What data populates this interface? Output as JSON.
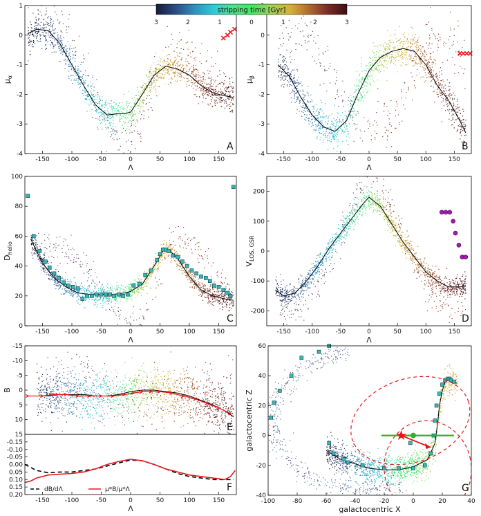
{
  "colorbar": {
    "label": "stripping time [Gyr]",
    "ticks": [
      "3",
      "2",
      "1",
      "0",
      "1",
      "2",
      "3"
    ],
    "colors": [
      "#151c3a",
      "#2c4a82",
      "#2f8fbf",
      "#2fc9d8",
      "#55e08a",
      "#40e860",
      "#9ed05a",
      "#d6b23a",
      "#b06a30",
      "#7a2a2a",
      "#3c0f12"
    ]
  },
  "panels": {
    "A": {
      "tag": "A",
      "xlabel": "Λ",
      "ylabel": "μ",
      "ylabel_sub": "α",
      "xlim": [
        -180,
        180
      ],
      "ylim": [
        -4,
        1
      ],
      "xticks": [
        "-150",
        "-100",
        "-50",
        "0",
        "50",
        "100",
        "150"
      ],
      "yticks": [
        "1",
        "0",
        "-1",
        "-2",
        "-3",
        "-4"
      ]
    },
    "B": {
      "tag": "B",
      "xlabel": "Λ",
      "ylabel": "μ",
      "ylabel_sub": "β",
      "xlim": [
        -180,
        180
      ],
      "ylim": [
        -4,
        1
      ],
      "xticks": [
        "-150",
        "-100",
        "-50",
        "0",
        "50",
        "100",
        "150"
      ],
      "yticks": [
        "1",
        "0",
        "-1",
        "-2",
        "-3",
        "-4"
      ]
    },
    "C": {
      "tag": "C",
      "xlabel": "Λ",
      "ylabel": "D",
      "ylabel_sub": "helio",
      "xlim": [
        -180,
        180
      ],
      "ylim": [
        0,
        100
      ],
      "xticks": [
        "-150",
        "-100",
        "-50",
        "0",
        "50",
        "100",
        "150"
      ],
      "yticks": [
        "100",
        "80",
        "60",
        "40",
        "20",
        "0"
      ]
    },
    "D": {
      "tag": "D",
      "xlabel": "Λ",
      "ylabel": "V",
      "ylabel_sub": "LOS, GSR",
      "xlim": [
        -180,
        180
      ],
      "ylim": [
        -250,
        250
      ],
      "xticks": [
        "-150",
        "-100",
        "-50",
        "0",
        "50",
        "100",
        "150"
      ],
      "yticks": [
        "200",
        "100",
        "0",
        "-100",
        "-200"
      ]
    },
    "E": {
      "tag": "E",
      "ylabel": "B",
      "xlim": [
        -180,
        180
      ],
      "ylim": [
        -15,
        15
      ],
      "yticks": [
        "-15",
        "-10",
        "-5",
        "0",
        "5",
        "10",
        "15"
      ]
    },
    "F": {
      "tag": "F",
      "xlabel": "Λ",
      "xlim": [
        -180,
        180
      ],
      "ylim": [
        -0.2,
        0.2
      ],
      "xticks": [
        "-150",
        "-100",
        "-50",
        "0",
        "50",
        "100",
        "150"
      ],
      "yticks": [
        "-0.15",
        "-0.10",
        "-0.05",
        "0.00",
        "0.05",
        "0.10",
        "0.15",
        "0.20"
      ],
      "legend": [
        {
          "name": "dB/dΛ",
          "style": "dashed",
          "color": "#000000"
        },
        {
          "name": "μ*B/μ*Λ",
          "style": "solid",
          "color": "#e8161b"
        }
      ]
    },
    "G": {
      "tag": "G",
      "xlabel": "galactocentric X",
      "ylabel": "galactocentric Z",
      "xlim": [
        -100,
        40
      ],
      "ylim": [
        -40,
        60
      ],
      "xticks": [
        "-100",
        "-80",
        "-60",
        "-40",
        "-20",
        "0",
        "20",
        "40"
      ],
      "yticks": [
        "60",
        "40",
        "20",
        "0",
        "-20",
        "-40"
      ]
    }
  },
  "chart_data": [
    {
      "type": "line",
      "panel": "A",
      "ylabel": "μα",
      "xlabel": "Λ",
      "series": [
        {
          "role": "model-track",
          "color": "#000000",
          "x": [
            -175,
            -160,
            -140,
            -120,
            -100,
            -80,
            -60,
            -40,
            -20,
            -10,
            0,
            20,
            40,
            60,
            80,
            100,
            120,
            140,
            160,
            175
          ],
          "y": [
            0.05,
            0.2,
            0.15,
            -0.3,
            -1.0,
            -1.7,
            -2.35,
            -2.7,
            -2.65,
            -2.65,
            -2.6,
            -2.0,
            -1.35,
            -1.05,
            -1.15,
            -1.35,
            -1.7,
            -1.95,
            -2.05,
            -2.1
          ]
        },
        {
          "role": "observed",
          "marker": "x",
          "color": "#e8161b",
          "x": [
            158,
            165,
            170,
            177
          ],
          "y": [
            -0.1,
            0.0,
            0.1,
            0.2
          ]
        }
      ]
    },
    {
      "type": "line",
      "panel": "B",
      "ylabel": "μβ",
      "xlabel": "Λ",
      "series": [
        {
          "role": "model-track",
          "color": "#000000",
          "x": [
            -160,
            -140,
            -120,
            -100,
            -80,
            -60,
            -40,
            -20,
            0,
            20,
            40,
            60,
            80,
            100,
            120,
            140,
            160,
            170
          ],
          "y": [
            -1.0,
            -1.4,
            -2.1,
            -2.7,
            -3.1,
            -3.25,
            -2.9,
            -2.0,
            -1.2,
            -0.75,
            -0.55,
            -0.45,
            -0.55,
            -1.0,
            -1.7,
            -2.2,
            -2.9,
            -3.3
          ]
        },
        {
          "role": "observed",
          "marker": "x",
          "color": "#e8161b",
          "x": [
            160,
            166,
            172,
            178
          ],
          "y": [
            -0.62,
            -0.62,
            -0.62,
            -0.62
          ]
        }
      ]
    },
    {
      "type": "line",
      "panel": "C",
      "ylabel": "Dhelio",
      "xlabel": "Λ",
      "series": [
        {
          "role": "model-track",
          "color": "#000000",
          "x": [
            -170,
            -150,
            -130,
            -110,
            -90,
            -70,
            -50,
            -30,
            -10,
            0,
            20,
            40,
            55,
            65,
            80,
            100,
            120,
            140,
            160,
            175
          ],
          "y": [
            58,
            42,
            32,
            26,
            22,
            21,
            21,
            21,
            22,
            23,
            28,
            40,
            50,
            51,
            45,
            33,
            24,
            20,
            18,
            17
          ]
        },
        {
          "role": "observed",
          "marker": "square",
          "color": "#36b8b8",
          "x": [
            -175,
            -165,
            -155,
            -145,
            -138,
            -130,
            -122,
            -114,
            -106,
            -98,
            -90,
            -82,
            -74,
            -66,
            -58,
            -50,
            -42,
            -35,
            -28,
            -20,
            -13,
            -5,
            5,
            15,
            25,
            35,
            45,
            50,
            55,
            60,
            65,
            72,
            80,
            88,
            96,
            104,
            112,
            120,
            128,
            135,
            142,
            150,
            158,
            165,
            170,
            175
          ],
          "y": [
            87,
            60,
            50,
            43,
            39,
            35,
            32,
            29,
            27,
            26,
            25,
            18,
            20,
            20,
            21,
            21,
            21,
            21,
            20,
            21,
            20,
            21,
            27,
            28,
            34,
            37,
            44,
            48,
            51,
            51,
            50,
            47,
            46,
            43,
            40,
            37,
            35,
            33,
            32,
            30,
            27,
            26,
            24,
            22,
            20,
            93
          ]
        }
      ]
    },
    {
      "type": "line",
      "panel": "D",
      "ylabel": "VLOS, GSR",
      "xlabel": "Λ",
      "series": [
        {
          "role": "model-track",
          "color": "#000000",
          "x": [
            -165,
            -150,
            -130,
            -110,
            -90,
            -70,
            -50,
            -30,
            -10,
            0,
            20,
            40,
            60,
            80,
            100,
            120,
            140,
            160,
            170
          ],
          "y": [
            -130,
            -150,
            -140,
            -100,
            -50,
            10,
            60,
            110,
            160,
            180,
            150,
            90,
            30,
            -20,
            -70,
            -100,
            -120,
            -120,
            -115
          ]
        },
        {
          "role": "observed",
          "marker": "circle",
          "color": "#a21caf",
          "x": [
            128,
            135,
            142,
            148,
            152,
            158,
            164,
            170
          ],
          "y": [
            130,
            130,
            130,
            100,
            60,
            20,
            -20,
            -20
          ]
        }
      ]
    },
    {
      "type": "line",
      "panel": "E",
      "ylabel": "B",
      "series": [
        {
          "role": "model-track",
          "color": "#000000",
          "x": [
            -160,
            -140,
            -120,
            -100,
            -80,
            -60,
            -40,
            -20,
            0,
            20,
            40,
            60,
            80,
            100,
            120,
            140,
            160,
            175
          ],
          "y": [
            2,
            2,
            1.5,
            1.5,
            1.5,
            2,
            2,
            1.5,
            0.5,
            0,
            0,
            0.5,
            1,
            2,
            3.5,
            5,
            7,
            9
          ]
        },
        {
          "role": "proper-motion-vectors",
          "color": "#e8161b",
          "x": [
            -175,
            -150,
            -130,
            -110,
            -90,
            -70,
            -50,
            -30,
            -10,
            5,
            20,
            35,
            50,
            70,
            90,
            110,
            130,
            150,
            170
          ],
          "y": [
            2,
            2,
            1.5,
            1.5,
            2,
            2,
            2,
            2,
            1.5,
            1,
            0.5,
            0.5,
            0.5,
            1,
            2,
            3,
            4.5,
            6,
            8
          ]
        }
      ]
    },
    {
      "type": "line",
      "panel": "F",
      "xlabel": "Λ",
      "series": [
        {
          "name": "dB/dΛ",
          "style": "dashed",
          "color": "#000000",
          "x": [
            -180,
            -160,
            -140,
            -120,
            -100,
            -80,
            -60,
            -40,
            -20,
            0,
            20,
            40,
            60,
            80,
            100,
            120,
            140,
            160,
            175
          ],
          "y": [
            0.0,
            0.04,
            0.055,
            0.05,
            0.05,
            0.04,
            0.03,
            0.01,
            -0.01,
            -0.03,
            -0.025,
            0.0,
            0.03,
            0.06,
            0.08,
            0.09,
            0.1,
            0.1,
            0.1
          ]
        },
        {
          "name": "μ*B/μ*Λ",
          "style": "solid",
          "color": "#e8161b",
          "x": [
            -180,
            -170,
            -160,
            -140,
            -120,
            -100,
            -80,
            -60,
            -40,
            -20,
            0,
            20,
            40,
            60,
            80,
            100,
            120,
            140,
            160,
            170,
            178
          ],
          "y": [
            0.12,
            0.11,
            0.09,
            0.07,
            0.065,
            0.06,
            0.05,
            0.03,
            0.0,
            -0.02,
            -0.035,
            -0.025,
            0.0,
            0.03,
            0.05,
            0.07,
            0.08,
            0.09,
            0.1,
            0.08,
            0.04
          ]
        }
      ]
    },
    {
      "type": "scatter",
      "panel": "G",
      "xlabel": "galactocentric X",
      "ylabel": "galactocentric Z",
      "series": [
        {
          "role": "model-track",
          "color": "#000000",
          "x": [
            -60,
            -50,
            -40,
            -30,
            -20,
            -10,
            0,
            10,
            15,
            17,
            18,
            20,
            22,
            26,
            30
          ],
          "y": [
            -10,
            -16,
            -19,
            -22,
            -23,
            -23,
            -21,
            -16,
            -5,
            10,
            20,
            30,
            36,
            38,
            35
          ]
        },
        {
          "role": "observed",
          "marker": "square",
          "color": "#36b8b8",
          "x": [
            -98,
            -96,
            -92,
            -84,
            -77,
            -65,
            -58,
            -45,
            -35,
            -20,
            -10,
            0,
            8,
            12,
            14,
            15,
            16,
            18,
            20,
            22,
            24,
            25,
            26,
            28,
            -2,
            -48,
            -55,
            -58
          ],
          "y": [
            12,
            22,
            30,
            40,
            52,
            56,
            60,
            -18,
            -20,
            -22,
            -22,
            -22,
            -20,
            -12,
            0,
            10,
            20,
            28,
            34,
            37,
            38,
            38,
            37,
            36,
            -5,
            -16,
            -12,
            -5
          ]
        },
        {
          "role": "orbit",
          "style": "dashed",
          "color": "#e8161b"
        }
      ],
      "sun": {
        "x": -8.3,
        "y": 0
      },
      "center": {
        "x": 0,
        "y": 0
      }
    }
  ]
}
